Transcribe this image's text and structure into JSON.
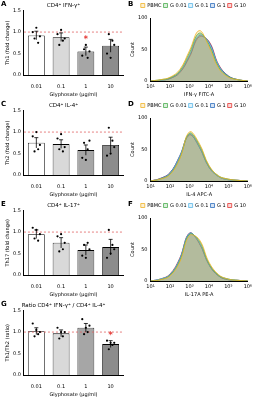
{
  "chart_data": [
    {
      "panel": "A",
      "type": "bar",
      "title": "CD4⁺ IFN-γ⁺",
      "ylabel": "Th1 (fold change)",
      "xlabel": "Glyphosate (µg/ml)",
      "categories": [
        "0.01",
        "0.1",
        "1",
        "10"
      ],
      "values": [
        0.92,
        0.88,
        0.55,
        0.68
      ],
      "errors": [
        0.1,
        0.1,
        0.1,
        0.15
      ],
      "points": [
        [
          1.0,
          0.85,
          1.1,
          0.75,
          0.9
        ],
        [
          0.95,
          0.7,
          1.05,
          0.8,
          0.85
        ],
        [
          0.45,
          0.6,
          0.7,
          0.4,
          0.55
        ],
        [
          0.5,
          0.95,
          0.4,
          0.8,
          0.7
        ]
      ],
      "colors": [
        "#ffffff",
        "#d9d9d9",
        "#a6a6a6",
        "#8c8c8c"
      ],
      "hline": 1,
      "annotations": [
        {
          "category": "1",
          "text": "*"
        }
      ],
      "ylim": [
        0,
        1.5
      ],
      "yticks": [
        {
          "value": 0,
          "label": "0.0"
        },
        {
          "value": 0.5,
          "label": "0.5"
        },
        {
          "value": 1,
          "label": "1.0"
        },
        {
          "value": 1.5,
          "label": "1.5"
        }
      ],
      "grid": false
    },
    {
      "panel": "B",
      "type": "line",
      "xlabel": "IFN-γ FITC-A",
      "ylabel": "Count",
      "log": "x",
      "x": [
        10,
        31.6,
        100,
        316,
        1000,
        3160,
        10000,
        31600,
        100000,
        316000,
        1000000
      ],
      "series": [
        {
          "name": "PBMC",
          "color": "#f0b429",
          "values": [
            0,
            2,
            6,
            18,
            48,
            80,
            55,
            20,
            6,
            2,
            0
          ]
        },
        {
          "name": "G 0.01",
          "color": "#4caf50",
          "values": [
            0,
            2,
            5,
            16,
            45,
            76,
            58,
            22,
            7,
            2,
            0
          ]
        },
        {
          "name": "G 0.1",
          "color": "#5bb8e8",
          "values": [
            0,
            1,
            5,
            15,
            42,
            74,
            60,
            24,
            7,
            2,
            0
          ]
        },
        {
          "name": "G 1",
          "color": "#2f6fbf",
          "values": [
            0,
            1,
            4,
            14,
            40,
            72,
            62,
            25,
            8,
            2,
            0
          ]
        },
        {
          "name": "G 10",
          "color": "#e53935",
          "values": [
            0,
            1,
            4,
            13,
            38,
            70,
            63,
            26,
            8,
            2,
            0
          ]
        }
      ],
      "xlim": [
        10,
        1000000
      ],
      "xticks": [
        {
          "value": 10,
          "label": "10¹"
        },
        {
          "value": 100,
          "label": "10²"
        },
        {
          "value": 1000,
          "label": "10³"
        },
        {
          "value": 10000,
          "label": "10⁴"
        },
        {
          "value": 100000,
          "label": "10⁵"
        },
        {
          "value": 1000000,
          "label": "10⁶"
        }
      ],
      "ylim": [
        0,
        100
      ],
      "yticks": [
        0,
        50,
        100
      ],
      "legend": "top",
      "grid": false
    },
    {
      "panel": "C",
      "type": "bar",
      "title": "CD4⁺ IL-4⁺",
      "ylabel": "Th2 (fold change)",
      "xlabel": "Glyphosate (µg/ml)",
      "categories": [
        "0.01",
        "0.1",
        "1",
        "10"
      ],
      "values": [
        0.75,
        0.72,
        0.58,
        0.7
      ],
      "errors": [
        0.12,
        0.1,
        0.12,
        0.18
      ],
      "points": [
        [
          0.9,
          0.55,
          1.0,
          0.6,
          0.7
        ],
        [
          0.85,
          0.6,
          0.95,
          0.55,
          0.65
        ],
        [
          0.4,
          0.75,
          0.35,
          0.6,
          0.8
        ],
        [
          0.45,
          1.1,
          0.5,
          0.8,
          0.65
        ]
      ],
      "colors": [
        "#ffffff",
        "#d9d9d9",
        "#a6a6a6",
        "#8c8c8c"
      ],
      "hline": 1,
      "ylim": [
        0,
        1.5
      ],
      "yticks": [
        {
          "value": 0,
          "label": "0.0"
        },
        {
          "value": 0.5,
          "label": "0.5"
        },
        {
          "value": 1,
          "label": "1.0"
        },
        {
          "value": 1.5,
          "label": "1.5"
        }
      ],
      "grid": false
    },
    {
      "panel": "D",
      "type": "line",
      "xlabel": "IL-4 APC-A",
      "ylabel": "Count",
      "log": "x",
      "x": [
        10,
        31.6,
        100,
        316,
        1000,
        3160,
        10000,
        31600,
        100000,
        316000,
        1000000
      ],
      "series": [
        {
          "name": "PBMC",
          "color": "#f0b429",
          "values": [
            0,
            3,
            10,
            35,
            78,
            60,
            25,
            8,
            3,
            1,
            0
          ]
        },
        {
          "name": "G 0.01",
          "color": "#4caf50",
          "values": [
            0,
            3,
            11,
            36,
            76,
            58,
            24,
            8,
            3,
            1,
            0
          ]
        },
        {
          "name": "G 0.1",
          "color": "#5bb8e8",
          "values": [
            0,
            3,
            12,
            38,
            75,
            56,
            23,
            7,
            2,
            1,
            0
          ]
        },
        {
          "name": "G 1",
          "color": "#2f6fbf",
          "values": [
            0,
            4,
            13,
            40,
            74,
            54,
            22,
            7,
            2,
            1,
            0
          ]
        },
        {
          "name": "G 10",
          "color": "#e53935",
          "values": [
            0,
            4,
            13,
            39,
            73,
            55,
            22,
            7,
            2,
            1,
            0
          ]
        }
      ],
      "xlim": [
        10,
        1000000
      ],
      "xticks": [
        {
          "value": 10,
          "label": "10¹"
        },
        {
          "value": 100,
          "label": "10²"
        },
        {
          "value": 1000,
          "label": "10³"
        },
        {
          "value": 10000,
          "label": "10⁴"
        },
        {
          "value": 100000,
          "label": "10⁵"
        },
        {
          "value": 1000000,
          "label": "10⁶"
        }
      ],
      "ylim": [
        0,
        100
      ],
      "yticks": [
        0,
        50,
        100
      ],
      "legend": "top",
      "grid": false
    },
    {
      "panel": "E",
      "type": "bar",
      "title": "CD4⁺ IL-17⁺",
      "ylabel": "Th17 (fold change)",
      "xlabel": "Glyphosate (µg/ml)",
      "categories": [
        "0.01",
        "0.1",
        "1",
        "10"
      ],
      "values": [
        0.95,
        0.75,
        0.58,
        0.65
      ],
      "errors": [
        0.1,
        0.12,
        0.12,
        0.18
      ],
      "points": [
        [
          1.1,
          0.85,
          1.05,
          0.8,
          0.95
        ],
        [
          0.9,
          0.55,
          0.95,
          0.6,
          0.75
        ],
        [
          0.45,
          0.7,
          0.4,
          0.75,
          0.6
        ],
        [
          0.4,
          1.05,
          0.5,
          0.7,
          0.6
        ]
      ],
      "colors": [
        "#ffffff",
        "#d9d9d9",
        "#a6a6a6",
        "#8c8c8c"
      ],
      "hline": 1,
      "ylim": [
        0,
        1.5
      ],
      "yticks": [
        {
          "value": 0,
          "label": "0.0"
        },
        {
          "value": 0.5,
          "label": "0.5"
        },
        {
          "value": 1,
          "label": "1.0"
        },
        {
          "value": 1.5,
          "label": "1.5"
        }
      ],
      "grid": false
    },
    {
      "panel": "F",
      "type": "line",
      "xlabel": "IL-17A PE-A",
      "ylabel": "Count",
      "log": "x",
      "x": [
        10,
        31.6,
        100,
        316,
        1000,
        3160,
        10000,
        31600,
        100000,
        316000,
        1000000
      ],
      "series": [
        {
          "name": "PBMC",
          "color": "#f0b429",
          "values": [
            0,
            2,
            8,
            30,
            72,
            66,
            30,
            10,
            3,
            1,
            0
          ]
        },
        {
          "name": "G 0.01",
          "color": "#4caf50",
          "values": [
            0,
            2,
            9,
            32,
            74,
            64,
            28,
            9,
            3,
            1,
            0
          ]
        },
        {
          "name": "G 0.1",
          "color": "#5bb8e8",
          "values": [
            0,
            3,
            10,
            34,
            75,
            62,
            27,
            9,
            3,
            1,
            0
          ]
        },
        {
          "name": "G 1",
          "color": "#2f6fbf",
          "values": [
            0,
            3,
            10,
            35,
            76,
            61,
            26,
            8,
            2,
            1,
            0
          ]
        },
        {
          "name": "G 10",
          "color": "#e53935",
          "values": [
            0,
            3,
            11,
            36,
            76,
            60,
            26,
            8,
            2,
            1,
            0
          ]
        }
      ],
      "xlim": [
        10,
        1000000
      ],
      "xticks": [
        {
          "value": 10,
          "label": "10¹"
        },
        {
          "value": 100,
          "label": "10²"
        },
        {
          "value": 1000,
          "label": "10³"
        },
        {
          "value": 10000,
          "label": "10⁴"
        },
        {
          "value": 100000,
          "label": "10⁵"
        },
        {
          "value": 1000000,
          "label": "10⁶"
        }
      ],
      "ylim": [
        0,
        100
      ],
      "yticks": [
        0,
        50,
        100
      ],
      "legend": "top",
      "grid": false
    },
    {
      "panel": "G",
      "type": "bar",
      "title": "Ratio CD4⁺ IFN-γ⁺ / CD4⁺ IL-4⁺",
      "ylabel": "Th1/Th2 (ratio)",
      "xlabel": "Glyphosate (µg/ml)",
      "categories": [
        "0.01",
        "0.1",
        "1",
        "10"
      ],
      "values": [
        1.02,
        0.97,
        1.1,
        0.72
      ],
      "errors": [
        0.08,
        0.08,
        0.1,
        0.08
      ],
      "points": [
        [
          1.2,
          0.9,
          1.05,
          0.95,
          1.0
        ],
        [
          1.1,
          0.85,
          1.0,
          0.9,
          1.0
        ],
        [
          1.3,
          0.95,
          1.1,
          1.0,
          1.15
        ],
        [
          0.8,
          0.6,
          0.75,
          0.7,
          0.75
        ]
      ],
      "colors": [
        "#ffffff",
        "#d9d9d9",
        "#a6a6a6",
        "#8c8c8c"
      ],
      "hline": 1,
      "annotations": [
        {
          "category": "10",
          "text": "*"
        }
      ],
      "ylim": [
        0,
        1.5
      ],
      "yticks": [
        {
          "value": 0,
          "label": "0.0"
        },
        {
          "value": 0.5,
          "label": "0.5"
        },
        {
          "value": 1,
          "label": "1.0"
        },
        {
          "value": 1.5,
          "label": "1.5"
        }
      ],
      "grid": false
    }
  ]
}
